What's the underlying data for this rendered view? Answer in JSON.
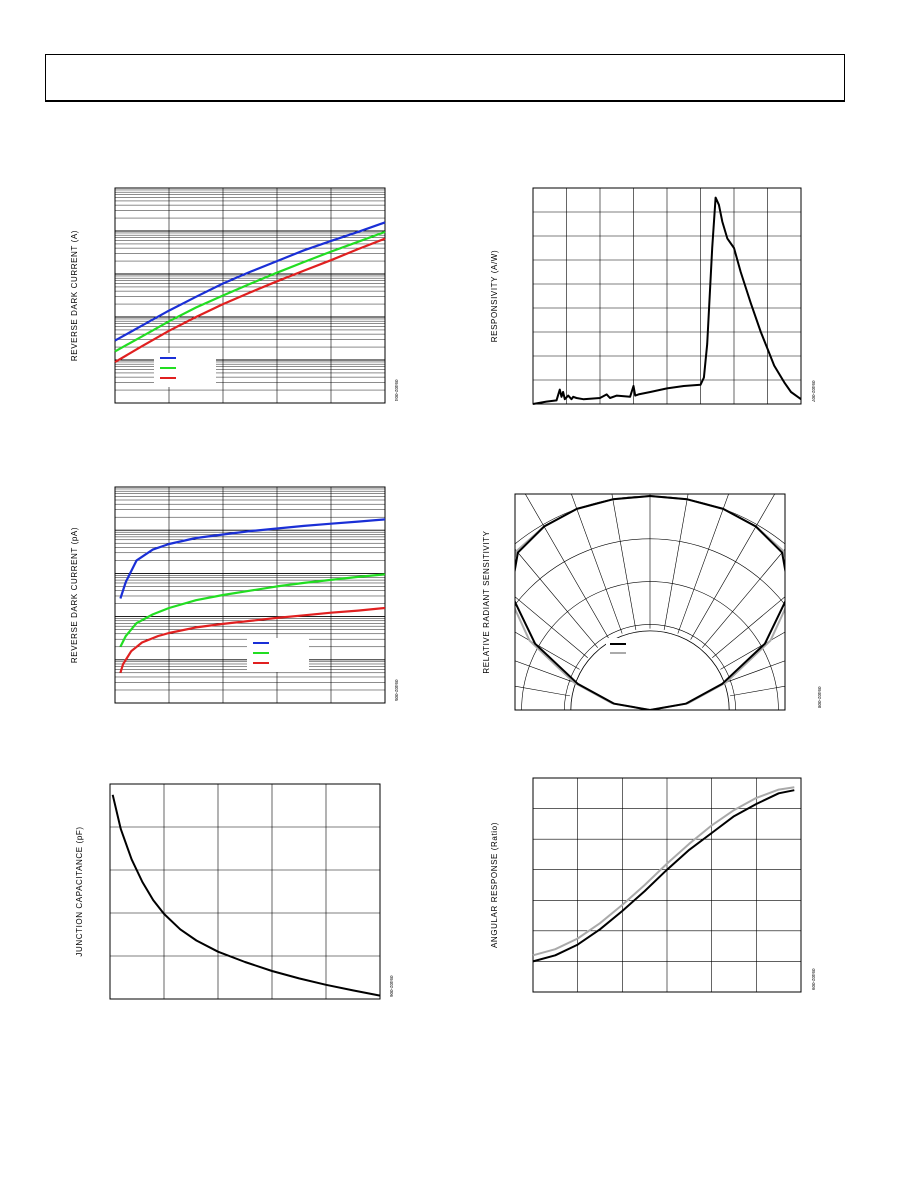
{
  "header": {
    "title": ""
  },
  "chart_data": [
    {
      "id": "c1",
      "type": "line",
      "scale": "log",
      "ylabel": "REVERSE DARK CURRENT (A)",
      "fignum": "09402-004",
      "xlim": [
        0,
        5
      ],
      "ylim": [
        0,
        5
      ],
      "x_divisions": 5,
      "y_decades": 5,
      "grid": true,
      "legend": {
        "placement": "bottom-left",
        "entries": [
          {
            "color": "#1a2fd6"
          },
          {
            "color": "#22dd22"
          },
          {
            "color": "#e02020"
          }
        ]
      },
      "series": [
        {
          "color": "#1a2fd6",
          "x": [
            0,
            0.5,
            1,
            1.5,
            2,
            2.5,
            3,
            3.5,
            4,
            4.5,
            5
          ],
          "y": [
            1.45,
            1.8,
            2.15,
            2.47,
            2.78,
            3.05,
            3.3,
            3.55,
            3.77,
            3.98,
            4.2
          ]
        },
        {
          "color": "#22dd22",
          "x": [
            0,
            0.5,
            1,
            1.5,
            2,
            2.5,
            3,
            3.5,
            4,
            4.5,
            5
          ],
          "y": [
            1.2,
            1.55,
            1.9,
            2.22,
            2.5,
            2.77,
            3.03,
            3.28,
            3.52,
            3.75,
            3.98
          ]
        },
        {
          "color": "#e02020",
          "x": [
            0,
            0.5,
            1,
            1.5,
            2,
            2.5,
            3,
            3.5,
            4,
            4.5,
            5
          ],
          "y": [
            0.95,
            1.32,
            1.68,
            2.0,
            2.3,
            2.57,
            2.83,
            3.08,
            3.32,
            3.58,
            3.82
          ]
        }
      ]
    },
    {
      "id": "c2",
      "type": "line",
      "scale": "linear",
      "ylabel": "RESPONSIVITY (A/W)",
      "fignum": "09402-007",
      "xlim": [
        0,
        8
      ],
      "ylim": [
        0,
        9
      ],
      "x_divisions": 8,
      "y_divisions": 9,
      "grid": true,
      "series": [
        {
          "color": "#000000",
          "x": [
            0,
            0.4,
            0.7,
            0.8,
            0.85,
            0.9,
            0.95,
            1.05,
            1.15,
            1.2,
            1.3,
            1.5,
            2,
            2.2,
            2.3,
            2.5,
            2.9,
            3.0,
            3.05,
            3.15,
            3.5,
            4,
            4.5,
            5,
            5.1,
            5.2,
            5.35,
            5.45,
            5.55,
            5.65,
            5.8,
            6.0,
            6.2,
            6.5,
            6.8,
            7.0,
            7.2,
            7.5,
            7.7,
            7.9,
            8
          ],
          "y": [
            0.0,
            0.1,
            0.15,
            0.6,
            0.3,
            0.5,
            0.2,
            0.35,
            0.2,
            0.3,
            0.25,
            0.2,
            0.25,
            0.4,
            0.25,
            0.35,
            0.3,
            0.75,
            0.35,
            0.4,
            0.5,
            0.65,
            0.75,
            0.8,
            1.1,
            2.5,
            6.5,
            8.6,
            8.3,
            7.6,
            6.9,
            6.5,
            5.5,
            4.2,
            3.0,
            2.3,
            1.6,
            0.9,
            0.5,
            0.3,
            0.2
          ]
        }
      ]
    },
    {
      "id": "c3",
      "type": "line",
      "scale": "log",
      "ylabel": "REVERSE DARK CURRENT (pA)",
      "fignum": "09402-005",
      "xlim": [
        0,
        5
      ],
      "ylim": [
        0,
        5
      ],
      "x_divisions": 5,
      "y_decades": 5,
      "grid": true,
      "legend": {
        "placement": "bottom-right",
        "entries": [
          {
            "color": "#1a2fd6"
          },
          {
            "color": "#22dd22"
          },
          {
            "color": "#e02020"
          }
        ]
      },
      "series": [
        {
          "color": "#1a2fd6",
          "x": [
            0.1,
            0.2,
            0.4,
            0.7,
            1,
            1.5,
            2,
            2.5,
            3,
            3.5,
            4,
            4.5,
            5
          ],
          "y": [
            2.42,
            2.8,
            3.3,
            3.55,
            3.68,
            3.82,
            3.9,
            3.98,
            4.04,
            4.1,
            4.15,
            4.2,
            4.25
          ]
        },
        {
          "color": "#22dd22",
          "x": [
            0.1,
            0.2,
            0.4,
            0.7,
            1,
            1.5,
            2,
            2.5,
            3,
            3.5,
            4,
            4.5,
            5
          ],
          "y": [
            1.3,
            1.55,
            1.85,
            2.05,
            2.2,
            2.38,
            2.5,
            2.6,
            2.7,
            2.78,
            2.85,
            2.92,
            2.98
          ]
        },
        {
          "color": "#e02020",
          "x": [
            0.1,
            0.15,
            0.3,
            0.5,
            0.8,
            1,
            1.5,
            2,
            2.5,
            3,
            3.5,
            4,
            4.5,
            5
          ],
          "y": [
            0.7,
            0.9,
            1.2,
            1.4,
            1.55,
            1.62,
            1.75,
            1.83,
            1.9,
            1.97,
            2.03,
            2.09,
            2.14,
            2.2
          ]
        }
      ]
    },
    {
      "id": "c4",
      "type": "line",
      "scale": "polar",
      "ylabel": "RELATIVE RADIANT SENSITIVITY",
      "fignum": "09402-008",
      "legend": {
        "placement": "center",
        "entries": [
          {
            "color": "#000000"
          },
          {
            "color": "#aaaaaa"
          }
        ]
      },
      "angles_deg": [
        -90,
        -80,
        -70,
        -60,
        -50,
        -40,
        -30,
        -20,
        -10,
        0,
        10,
        20,
        30,
        40,
        50,
        60,
        70,
        80,
        90
      ],
      "series": [
        {
          "color": "#aaaaaa",
          "r": [
            0.0,
            0.18,
            0.38,
            0.65,
            0.88,
            0.97,
            0.99,
            1.0,
            1.0,
            1.0,
            1.0,
            1.0,
            0.99,
            0.97,
            0.88,
            0.65,
            0.38,
            0.18,
            0.0
          ]
        },
        {
          "color": "#000000",
          "r": [
            0.0,
            0.17,
            0.36,
            0.62,
            0.85,
            0.96,
            0.99,
            1.0,
            1.0,
            1.0,
            1.0,
            1.0,
            0.99,
            0.96,
            0.85,
            0.62,
            0.36,
            0.17,
            0.0
          ]
        }
      ]
    },
    {
      "id": "c5",
      "type": "line",
      "scale": "linear",
      "ylabel": "JUNCTION CAPACITANCE (pF)",
      "fignum": "09402-006",
      "xlim": [
        0,
        5
      ],
      "ylim": [
        0,
        5
      ],
      "x_divisions": 5,
      "y_divisions": 5,
      "grid": true,
      "series": [
        {
          "color": "#000000",
          "x": [
            0.05,
            0.2,
            0.4,
            0.6,
            0.8,
            1.0,
            1.3,
            1.6,
            2.0,
            2.5,
            3.0,
            3.5,
            4.0,
            4.5,
            5.0
          ],
          "y": [
            4.75,
            3.95,
            3.25,
            2.72,
            2.3,
            1.98,
            1.62,
            1.36,
            1.1,
            0.86,
            0.65,
            0.48,
            0.33,
            0.2,
            0.08
          ]
        }
      ]
    },
    {
      "id": "c6",
      "type": "line",
      "scale": "linear",
      "ylabel": "ANGULAR RESPONSE (Ratio)",
      "fignum": "09402-009",
      "xlim": [
        0,
        6
      ],
      "ylim": [
        0,
        7
      ],
      "x_divisions": 6,
      "y_divisions": 7,
      "grid": true,
      "series": [
        {
          "color": "#aaaaaa",
          "x": [
            0,
            0.5,
            1,
            1.5,
            2,
            2.5,
            3,
            3.5,
            4,
            4.5,
            5,
            5.5,
            5.85
          ],
          "y": [
            1.2,
            1.4,
            1.75,
            2.25,
            2.85,
            3.5,
            4.2,
            4.85,
            5.45,
            5.95,
            6.35,
            6.62,
            6.7
          ]
        },
        {
          "color": "#000000",
          "x": [
            0,
            0.5,
            1,
            1.5,
            2,
            2.5,
            3,
            3.5,
            4,
            4.5,
            5,
            5.5,
            5.85
          ],
          "y": [
            1.0,
            1.2,
            1.55,
            2.05,
            2.65,
            3.3,
            4.0,
            4.65,
            5.2,
            5.75,
            6.15,
            6.5,
            6.6
          ]
        }
      ]
    }
  ]
}
